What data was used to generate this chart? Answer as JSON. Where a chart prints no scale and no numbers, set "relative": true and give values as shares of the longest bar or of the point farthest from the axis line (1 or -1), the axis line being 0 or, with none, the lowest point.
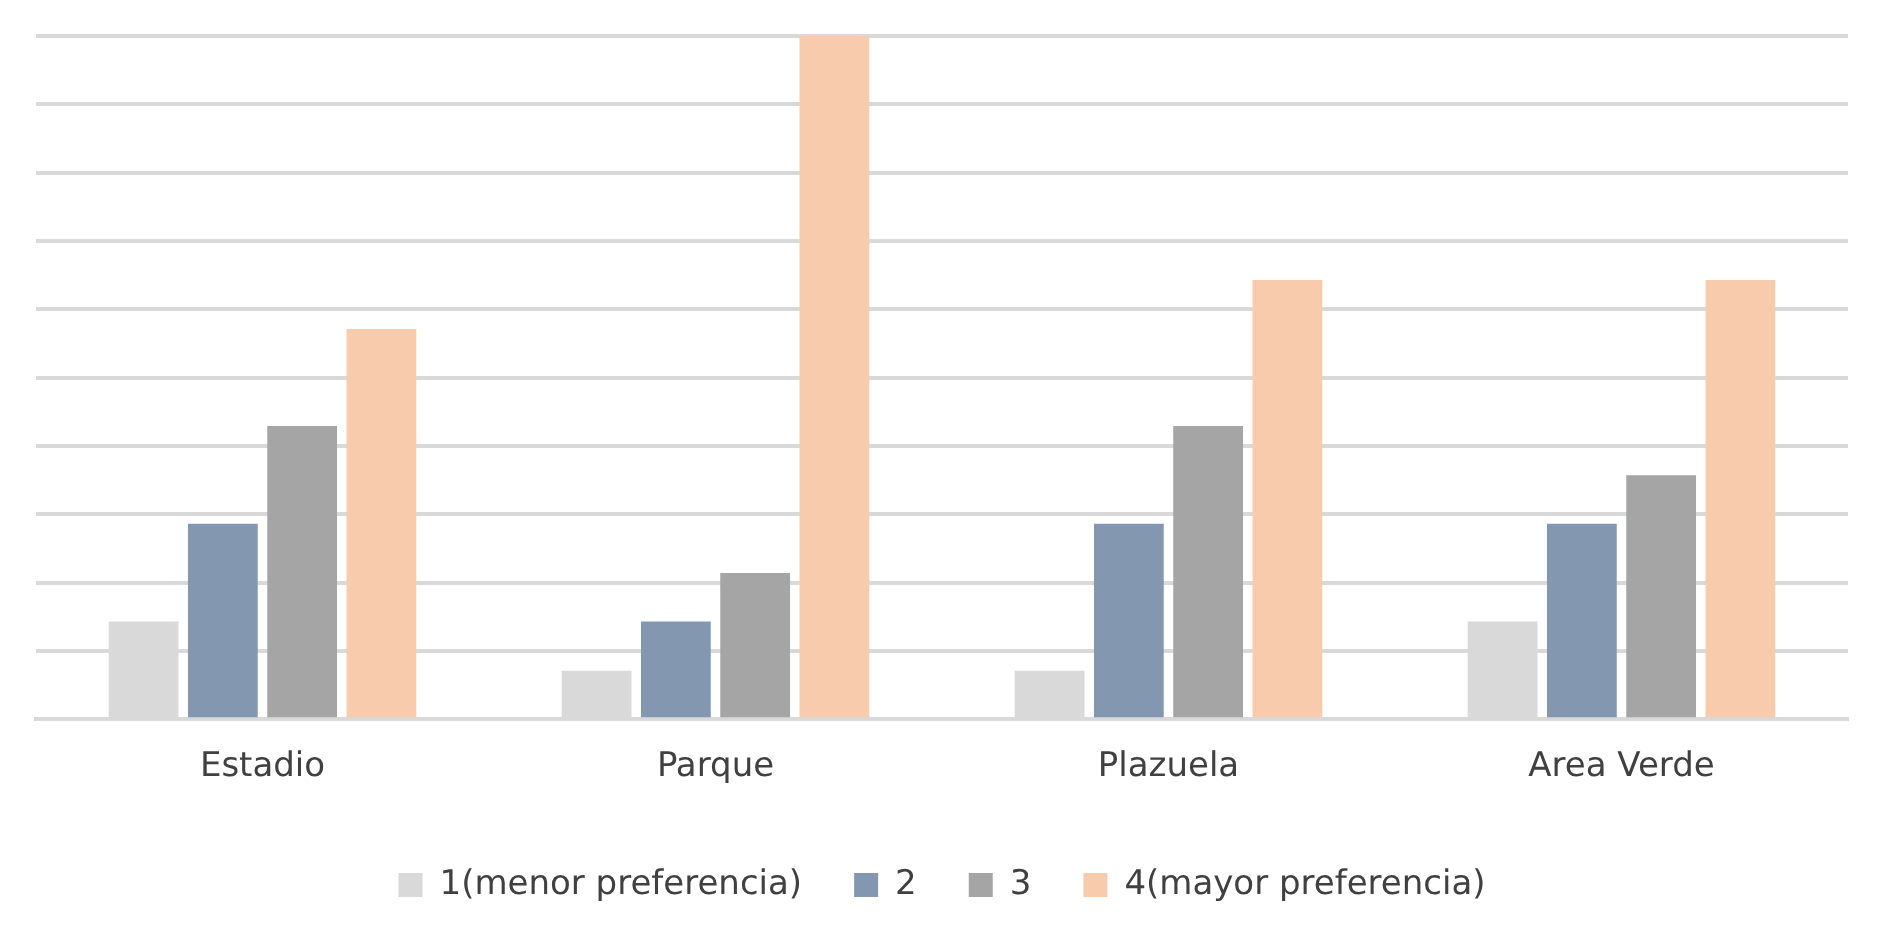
{
  "chart_data": {
    "type": "bar",
    "relative": true,
    "categories": [
      "Estadio",
      "Parque",
      "Plazuela",
      "Area Verde"
    ],
    "series": [
      {
        "name": "1(menor preferencia)",
        "color": "#d9d9d9",
        "values": [
          0.143,
          0.071,
          0.071,
          0.143
        ]
      },
      {
        "name": "2",
        "color": "#8497b0",
        "values": [
          0.286,
          0.143,
          0.286,
          0.286
        ]
      },
      {
        "name": "3",
        "color": "#a5a5a5",
        "values": [
          0.429,
          0.214,
          0.429,
          0.357
        ]
      },
      {
        "name": "4(mayor preferencia)",
        "color": "#f8cbad",
        "values": [
          0.571,
          1,
          0.643,
          0.643
        ]
      }
    ],
    "grid": "y",
    "legend": "bottom"
  }
}
